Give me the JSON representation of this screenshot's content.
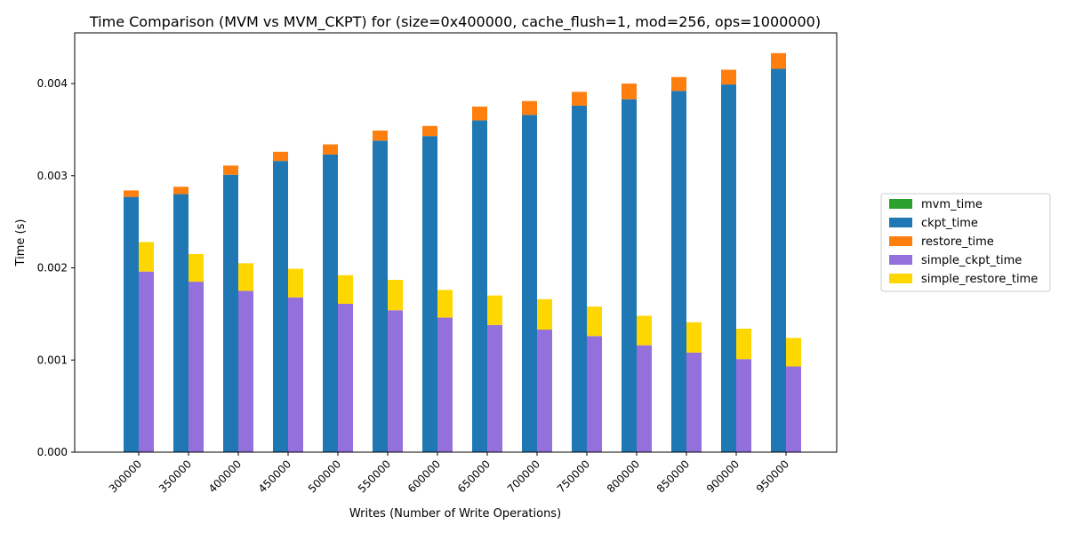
{
  "chart_data": {
    "type": "bar",
    "title": "Time Comparison (MVM vs MVM_CKPT) for (size=0x400000, cache_flush=1, mod=256, ops=1000000)",
    "xlabel": "Writes (Number of Write Operations)",
    "ylabel": "Time (s)",
    "categories": [
      "300000",
      "350000",
      "400000",
      "450000",
      "500000",
      "550000",
      "600000",
      "650000",
      "700000",
      "750000",
      "800000",
      "850000",
      "900000",
      "950000"
    ],
    "ylim": [
      0,
      0.00455
    ],
    "yticks": [
      "0.000",
      "0.001",
      "0.002",
      "0.003",
      "0.004"
    ],
    "ytick_values": [
      0,
      0.001,
      0.002,
      0.003,
      0.004
    ],
    "legend_position": "right",
    "grid": false,
    "series": [
      {
        "name": "mvm_time",
        "color": "#2ca02c",
        "stack": "mvm",
        "values": [
          0,
          0,
          0,
          0,
          0,
          0,
          0,
          0,
          0,
          0,
          0,
          0,
          0,
          0
        ]
      },
      {
        "name": "ckpt_time",
        "color": "#1f77b4",
        "stack": "mvm",
        "values": [
          0.00277,
          0.0028,
          0.00301,
          0.00316,
          0.00323,
          0.00338,
          0.00343,
          0.0036,
          0.00366,
          0.00376,
          0.00383,
          0.00392,
          0.00399,
          0.00416
        ]
      },
      {
        "name": "restore_time",
        "color": "#ff7f0e",
        "stack": "mvm",
        "values": [
          7e-05,
          8e-05,
          0.0001,
          0.0001,
          0.00011,
          0.00011,
          0.00011,
          0.00015,
          0.00015,
          0.00015,
          0.00017,
          0.00015,
          0.00016,
          0.00017
        ]
      },
      {
        "name": "simple_ckpt_time",
        "color": "#9370db",
        "stack": "simple",
        "values": [
          0.00196,
          0.00185,
          0.00175,
          0.00168,
          0.00161,
          0.00154,
          0.00146,
          0.00138,
          0.00133,
          0.00126,
          0.00116,
          0.00108,
          0.00101,
          0.00093
        ]
      },
      {
        "name": "simple_restore_time",
        "color": "#ffd700",
        "stack": "simple",
        "values": [
          0.00032,
          0.0003,
          0.0003,
          0.00031,
          0.00031,
          0.00033,
          0.0003,
          0.00032,
          0.00033,
          0.00032,
          0.00032,
          0.00033,
          0.00033,
          0.00031
        ]
      }
    ]
  }
}
